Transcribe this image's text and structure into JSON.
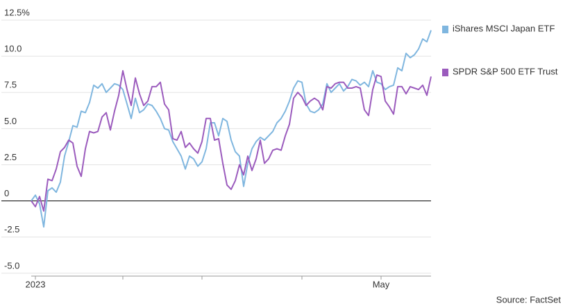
{
  "chart_data": {
    "type": "line",
    "categories": [
      null,
      "2023",
      null,
      null,
      null,
      null,
      null,
      null,
      null,
      null,
      null,
      null,
      null,
      null,
      null,
      null,
      null,
      null,
      null,
      null,
      null,
      null,
      null,
      null,
      null,
      null,
      null,
      null,
      null,
      null,
      null,
      null,
      null,
      null,
      null,
      null,
      null,
      null,
      null,
      null,
      null,
      null,
      null,
      null,
      null,
      null,
      null,
      null,
      null,
      null,
      null,
      null,
      null,
      null,
      null,
      null,
      null,
      null,
      null,
      null,
      null,
      null,
      null,
      null,
      null,
      null,
      null,
      null,
      null,
      null,
      null,
      null,
      null,
      null,
      null,
      null,
      null,
      null,
      null,
      null,
      null,
      null,
      null,
      null,
      "May",
      null,
      null,
      null,
      null,
      null,
      null,
      null,
      null,
      null,
      null,
      null,
      null
    ],
    "xticks": [
      1,
      22,
      41,
      65,
      84
    ],
    "series": [
      {
        "name": "iShares MSCI Japan ETF",
        "color": "#7fb6df",
        "values": [
          0,
          0.4,
          -0.2,
          -1.8,
          0.7,
          0.9,
          0.6,
          1.3,
          3.1,
          4.1,
          5.2,
          5.1,
          6.2,
          6.1,
          6.8,
          8.0,
          7.8,
          8.1,
          7.5,
          7.8,
          8.1,
          8.0,
          7.7,
          6.7,
          5.7,
          7.1,
          6.1,
          6.3,
          6.7,
          6.6,
          6.2,
          5.7,
          5.0,
          4.9,
          4.1,
          3.6,
          3.1,
          2.2,
          3.1,
          2.9,
          2.4,
          2.7,
          3.6,
          5.4,
          5.4,
          4.5,
          5.7,
          5.5,
          4.2,
          3.4,
          3.1,
          1.0,
          2.6,
          3.6,
          4.1,
          4.4,
          4.2,
          4.5,
          4.8,
          5.4,
          5.7,
          6.2,
          6.9,
          7.8,
          8.3,
          8.2,
          6.7,
          6.2,
          6.1,
          6.3,
          6.7,
          8.1,
          7.5,
          7.8,
          8.1,
          7.6,
          7.9,
          8.4,
          8.3,
          8.0,
          8.2,
          7.9,
          9.0,
          8.2,
          8.1,
          7.7,
          7.9,
          8.0,
          9.2,
          9.0,
          10.2,
          9.9,
          10.1,
          10.5,
          11.2,
          11.0,
          11.8
        ]
      },
      {
        "name": "SPDR S&P 500 ETF Trust",
        "color": "#9b5bbd",
        "values": [
          0,
          -0.4,
          0.3,
          -0.7,
          1.5,
          1.4,
          2.2,
          3.4,
          3.7,
          4.2,
          4.0,
          2.4,
          1.7,
          3.6,
          4.8,
          4.7,
          4.8,
          5.8,
          6.1,
          4.9,
          6.2,
          7.3,
          9.0,
          7.7,
          6.6,
          8.5,
          7.4,
          6.6,
          6.9,
          7.9,
          7.9,
          8.2,
          6.7,
          6.3,
          4.3,
          4.2,
          4.8,
          3.7,
          4.0,
          3.6,
          3.3,
          4.1,
          5.7,
          5.7,
          4.2,
          4.3,
          2.6,
          1.1,
          0.8,
          1.4,
          2.5,
          1.8,
          3.1,
          2.1,
          2.9,
          4.2,
          2.6,
          2.9,
          3.5,
          3.6,
          3.5,
          4.5,
          5.3,
          7.1,
          7.5,
          7.2,
          6.6,
          6.9,
          7.1,
          6.9,
          6.3,
          7.9,
          7.8,
          8.1,
          8.2,
          8.2,
          7.8,
          7.8,
          7.9,
          7.8,
          6.3,
          5.9,
          7.7,
          8.7,
          8.6,
          6.9,
          6.5,
          6.0,
          7.9,
          7.9,
          7.4,
          7.9,
          7.8,
          7.7,
          8.0,
          7.3,
          8.6
        ]
      }
    ],
    "ylim": [
      -5.2,
      12.5
    ],
    "yticks": [
      {
        "value": 12.5,
        "label": "12.5%"
      },
      {
        "value": 10,
        "label": "10.0"
      },
      7.5,
      {
        "value": 5,
        "label": "5.0"
      },
      2.5,
      0,
      -2.5,
      {
        "value": -5,
        "label": "-5.0"
      }
    ],
    "grid": true,
    "legend": "right",
    "source": "Source: FactSet"
  }
}
